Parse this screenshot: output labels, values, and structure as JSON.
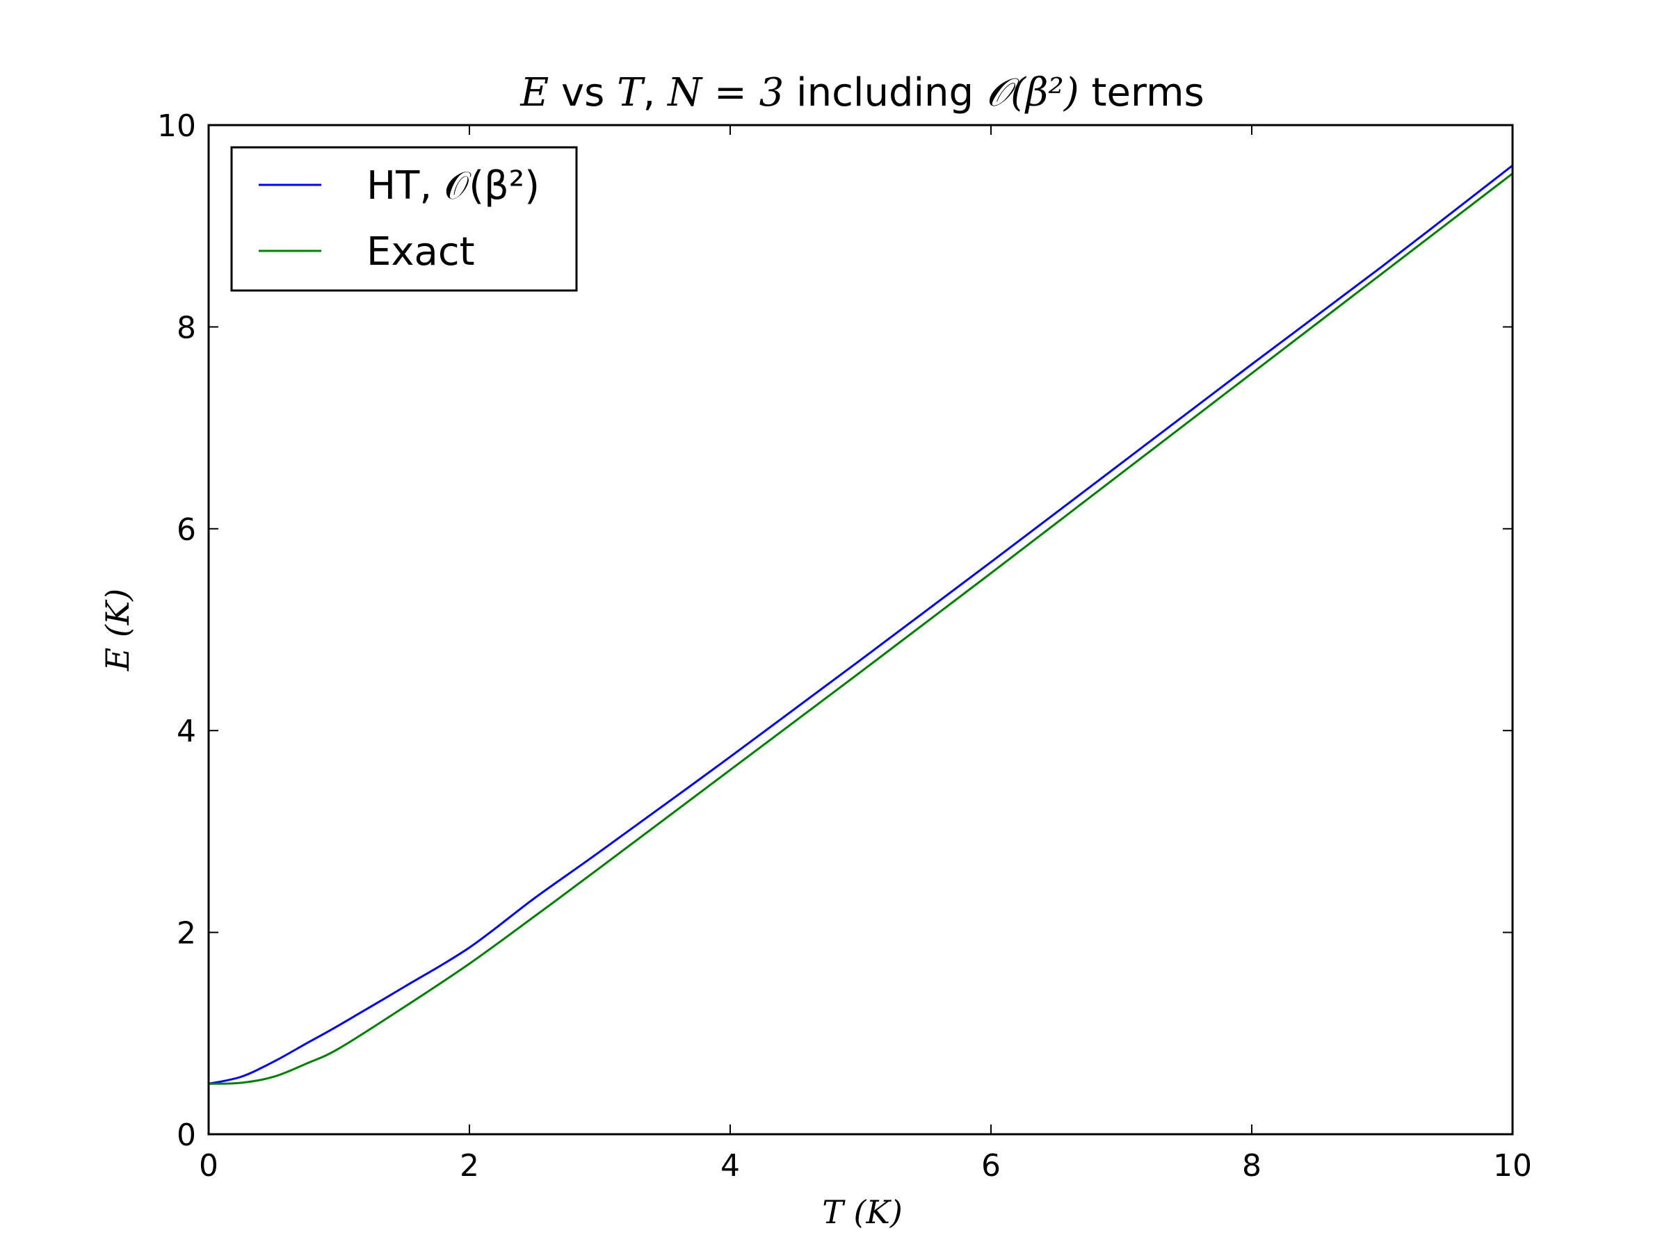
{
  "chart_data": {
    "type": "line",
    "title": "E vs T, N = 3 including O(β²) terms",
    "title_parts": {
      "e": "E",
      "vs": " vs ",
      "t": "T",
      "comma": ", ",
      "n_eq": "N = 3",
      "including": " including ",
      "order": "𝒪(β²)",
      "terms": " terms"
    },
    "xlabel": "T (K)",
    "ylabel": "E (K)",
    "xlim": [
      0,
      10
    ],
    "ylim": [
      0,
      10
    ],
    "x_ticks": [
      "0",
      "2",
      "4",
      "6",
      "8",
      "10"
    ],
    "y_ticks": [
      "0",
      "2",
      "4",
      "6",
      "8",
      "10"
    ],
    "x_tick_values": [
      0,
      2,
      4,
      6,
      8,
      10
    ],
    "y_tick_values": [
      0,
      2,
      4,
      6,
      8,
      10
    ],
    "grid": false,
    "legend_position": "upper-left",
    "series": [
      {
        "name": "HT, 𝒪(β²)",
        "color": "#0000ff",
        "x": [
          0.0,
          0.25,
          0.5,
          0.75,
          1.0,
          1.5,
          2.0,
          2.5,
          3.0,
          4.0,
          5.0,
          6.0,
          7.0,
          8.0,
          9.0,
          10.0
        ],
        "y": [
          0.5,
          0.57,
          0.72,
          0.9,
          1.08,
          1.46,
          1.85,
          2.34,
          2.8,
          3.74,
          4.7,
          5.67,
          6.65,
          7.63,
          8.6,
          9.6
        ]
      },
      {
        "name": "Exact",
        "color": "#008000",
        "x": [
          0.0,
          0.25,
          0.5,
          0.75,
          1.0,
          1.5,
          2.0,
          2.5,
          3.0,
          4.0,
          5.0,
          6.0,
          7.0,
          8.0,
          9.0,
          10.0
        ],
        "y": [
          0.5,
          0.51,
          0.57,
          0.7,
          0.85,
          1.26,
          1.69,
          2.16,
          2.64,
          3.61,
          4.58,
          5.56,
          6.55,
          7.54,
          8.53,
          9.52
        ]
      }
    ]
  }
}
